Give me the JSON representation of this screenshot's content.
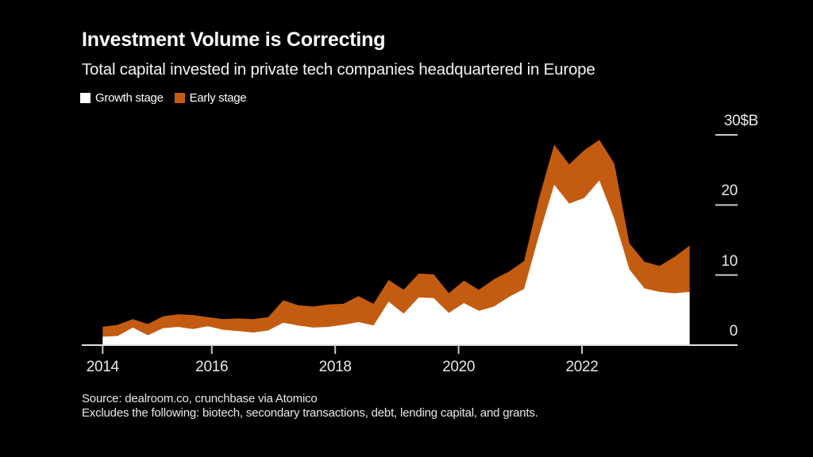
{
  "header": {
    "title": "Investment Volume is Correcting",
    "subtitle": "Total capital invested in private tech companies headquartered in Europe"
  },
  "legend": [
    {
      "label": "Growth stage",
      "color": "#ffffff"
    },
    {
      "label": "Early stage",
      "color": "#c35c10"
    }
  ],
  "chart_data": {
    "type": "area",
    "stacked": true,
    "title": "Investment Volume is Correcting",
    "subtitle": "Total capital invested in private tech companies headquartered in Europe",
    "x_unit": "quarter",
    "categories": [
      "2014 Q1",
      "2014 Q2",
      "2014 Q3",
      "2014 Q4",
      "2015 Q1",
      "2015 Q2",
      "2015 Q3",
      "2015 Q4",
      "2016 Q1",
      "2016 Q2",
      "2016 Q3",
      "2016 Q4",
      "2017 Q1",
      "2017 Q2",
      "2017 Q3",
      "2017 Q4",
      "2018 Q1",
      "2018 Q2",
      "2018 Q3",
      "2018 Q4",
      "2019 Q1",
      "2019 Q2",
      "2019 Q3",
      "2019 Q4",
      "2020 Q1",
      "2020 Q2",
      "2020 Q3",
      "2020 Q4",
      "2021 Q1",
      "2021 Q2",
      "2021 Q3",
      "2021 Q4",
      "2022 Q1",
      "2022 Q2",
      "2022 Q3",
      "2022 Q4",
      "2023 Q1",
      "2023 Q2",
      "2023 Q3",
      "2023 Q4"
    ],
    "series": [
      {
        "name": "Growth stage",
        "color": "#ffffff",
        "values": [
          1.2,
          1.3,
          2.5,
          1.4,
          2.4,
          2.6,
          2.3,
          2.7,
          2.2,
          2.0,
          1.8,
          2.1,
          3.2,
          2.8,
          2.5,
          2.6,
          2.9,
          3.3,
          2.8,
          6.2,
          4.5,
          6.8,
          6.7,
          4.6,
          6.0,
          4.9,
          5.5,
          6.9,
          8.0,
          15.7,
          22.9,
          20.2,
          21.0,
          23.5,
          18.0,
          10.8,
          8.1,
          7.6,
          7.4,
          7.6
        ]
      },
      {
        "name": "Early stage",
        "color": "#c35c10",
        "values": [
          1.4,
          1.6,
          1.2,
          1.6,
          1.7,
          1.8,
          2.0,
          1.3,
          1.5,
          1.8,
          1.9,
          1.9,
          3.2,
          2.9,
          3.0,
          3.2,
          3.0,
          3.7,
          3.1,
          3.1,
          3.4,
          3.4,
          3.4,
          2.8,
          3.2,
          3.0,
          3.9,
          3.6,
          4.0,
          5.3,
          5.7,
          5.6,
          6.8,
          5.8,
          7.9,
          3.7,
          3.8,
          3.7,
          5.2,
          6.6
        ]
      }
    ],
    "xticks": [
      {
        "label": "2014",
        "pos": 0
      },
      {
        "label": "2016",
        "pos": 7.25
      },
      {
        "label": "2018",
        "pos": 15.45
      },
      {
        "label": "2020",
        "pos": 23.65
      },
      {
        "label": "2022",
        "pos": 31.85
      }
    ],
    "yticks": [
      {
        "label": "0",
        "value": 0
      },
      {
        "label": "10",
        "value": 10
      },
      {
        "label": "20",
        "value": 20
      },
      {
        "label": "30$B",
        "value": 30
      }
    ],
    "ylim": [
      0,
      30
    ],
    "grid": false,
    "legend_position": "top-left"
  },
  "source": {
    "line1": "Source: dealroom.co, crunchbase via Atomico",
    "line2": "Excludes the following: biotech, secondary transactions, debt, lending capital, and grants."
  },
  "colors": {
    "background": "#000000",
    "growth": "#ffffff",
    "early": "#c35c10",
    "axis_line": "#e0e0e0",
    "tick": "#c8c8c8",
    "label": "#e8e8e8"
  }
}
